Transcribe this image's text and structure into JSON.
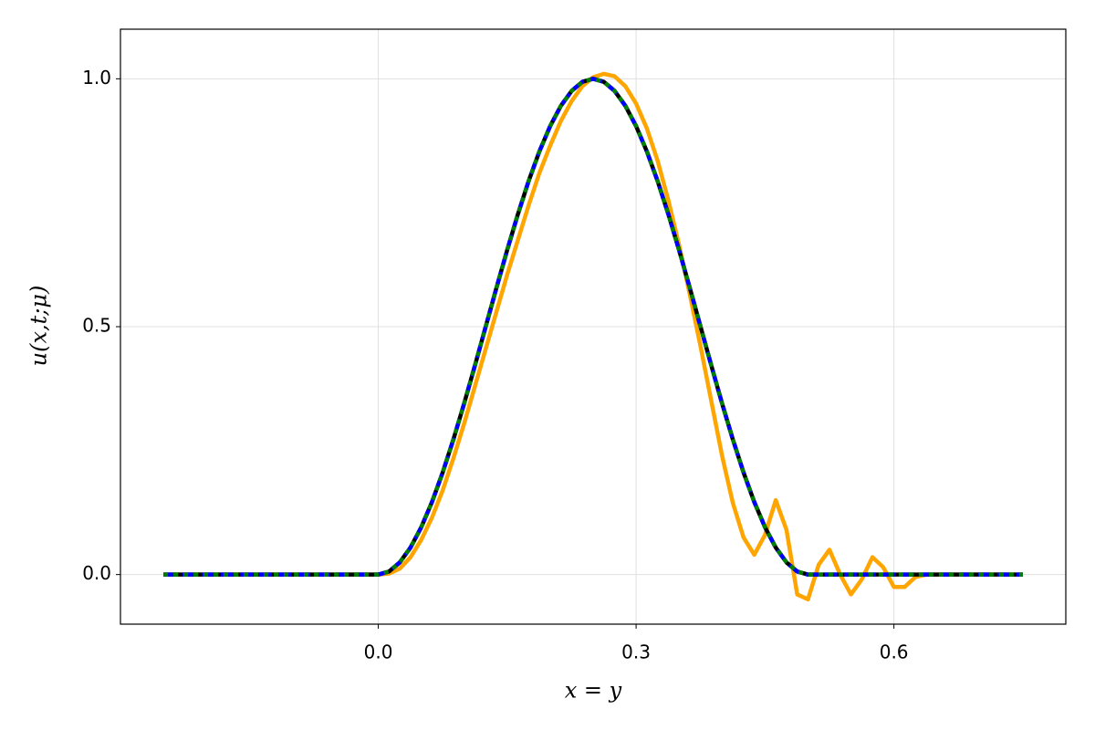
{
  "chart_data": {
    "type": "line",
    "xlabel": "x = y",
    "ylabel": "u(x,t;μ)",
    "x": [
      -0.25,
      -0.2375,
      -0.225,
      -0.2125,
      -0.2,
      -0.1875,
      -0.175,
      -0.1625,
      -0.15,
      -0.1375,
      -0.125,
      -0.1125,
      -0.1,
      -0.0875,
      -0.075,
      -0.0625,
      -0.05,
      -0.0375,
      -0.025,
      -0.0125,
      0,
      0.0125,
      0.025,
      0.0375,
      0.05,
      0.0625,
      0.075,
      0.0875,
      0.1,
      0.1125,
      0.125,
      0.1375,
      0.15,
      0.1625,
      0.175,
      0.1875,
      0.2,
      0.2125,
      0.225,
      0.2375,
      0.25,
      0.2625,
      0.275,
      0.2875,
      0.3,
      0.3125,
      0.325,
      0.3375,
      0.35,
      0.3625,
      0.375,
      0.3875,
      0.4,
      0.4125,
      0.425,
      0.4375,
      0.45,
      0.4625,
      0.475,
      0.4875,
      0.5,
      0.5125,
      0.525,
      0.5375,
      0.55,
      0.5625,
      0.575,
      0.5875,
      0.6,
      0.6125,
      0.625,
      0.6375,
      0.65,
      0.6625,
      0.675,
      0.6875,
      0.7,
      0.7125,
      0.725,
      0.7375,
      0.75
    ],
    "series": [
      {
        "color": "#ffa500",
        "dash": "solid",
        "values": [
          0,
          0,
          0,
          0,
          0,
          0,
          0,
          0,
          0,
          0,
          0,
          0,
          0,
          0,
          0,
          0,
          0,
          0,
          0,
          0,
          0,
          0.002,
          0.012,
          0.035,
          0.07,
          0.115,
          0.17,
          0.235,
          0.305,
          0.38,
          0.455,
          0.53,
          0.605,
          0.675,
          0.745,
          0.81,
          0.865,
          0.915,
          0.955,
          0.985,
          1.003,
          1.01,
          1.005,
          0.985,
          0.95,
          0.9,
          0.835,
          0.755,
          0.665,
          0.565,
          0.46,
          0.35,
          0.24,
          0.145,
          0.075,
          0.04,
          0.08,
          0.15,
          0.09,
          -0.04,
          -0.05,
          0.02,
          0.05,
          0,
          -0.04,
          -0.01,
          0.035,
          0.015,
          -0.025,
          -0.025,
          -0.005,
          0,
          0,
          0,
          0,
          0,
          0,
          0,
          0,
          0,
          0
        ]
      },
      {
        "color": "#000000",
        "dash": "solid",
        "values": [
          0,
          0,
          0,
          0,
          0,
          0,
          0,
          0,
          0,
          0,
          0,
          0,
          0,
          0,
          0,
          0,
          0,
          0,
          0,
          0,
          0,
          0.0062,
          0.0245,
          0.0545,
          0.0955,
          0.1464,
          0.2061,
          0.273,
          0.3455,
          0.4218,
          0.5,
          0.5782,
          0.6545,
          0.727,
          0.7939,
          0.8536,
          0.9045,
          0.9455,
          0.9755,
          0.9938,
          1,
          0.9938,
          0.9755,
          0.9455,
          0.9045,
          0.8536,
          0.7939,
          0.727,
          0.6545,
          0.5782,
          0.5,
          0.4218,
          0.3455,
          0.273,
          0.2061,
          0.1464,
          0.0955,
          0.0545,
          0.0245,
          0.0062,
          0,
          0,
          0,
          0,
          0,
          0,
          0,
          0,
          0,
          0,
          0,
          0,
          0,
          0,
          0,
          0,
          0,
          0,
          0,
          0,
          0
        ]
      },
      {
        "color": "#0000ff",
        "dash": "dash",
        "values": [
          0,
          0,
          0,
          0,
          0,
          0,
          0,
          0,
          0,
          0,
          0,
          0,
          0,
          0,
          0,
          0,
          0,
          0,
          0,
          0,
          0,
          0.0062,
          0.0245,
          0.0545,
          0.0955,
          0.1464,
          0.2061,
          0.273,
          0.3455,
          0.4218,
          0.5,
          0.5782,
          0.6545,
          0.727,
          0.7939,
          0.8536,
          0.9045,
          0.9455,
          0.9755,
          0.9938,
          1,
          0.9938,
          0.9755,
          0.9455,
          0.9045,
          0.8536,
          0.7939,
          0.727,
          0.6545,
          0.5782,
          0.5,
          0.4218,
          0.3455,
          0.273,
          0.2061,
          0.1464,
          0.0955,
          0.0545,
          0.0245,
          0.0062,
          0,
          0,
          0,
          0,
          0,
          0,
          0,
          0,
          0,
          0,
          0,
          0,
          0,
          0,
          0,
          0,
          0,
          0,
          0,
          0,
          0
        ]
      },
      {
        "color": "#008000",
        "dash": "dot",
        "values": [
          0,
          0,
          0,
          0,
          0,
          0,
          0,
          0,
          0,
          0,
          0,
          0,
          0,
          0,
          0,
          0,
          0,
          0,
          0,
          0,
          0,
          0.0062,
          0.0245,
          0.0545,
          0.0955,
          0.1464,
          0.2061,
          0.273,
          0.3455,
          0.4218,
          0.5,
          0.5782,
          0.6545,
          0.727,
          0.7939,
          0.8536,
          0.9045,
          0.9455,
          0.9755,
          0.9938,
          1,
          0.9938,
          0.9755,
          0.9455,
          0.9045,
          0.8536,
          0.7939,
          0.727,
          0.6545,
          0.5782,
          0.5,
          0.4218,
          0.3455,
          0.273,
          0.2061,
          0.1464,
          0.0955,
          0.0545,
          0.0245,
          0.0062,
          0,
          0,
          0,
          0,
          0,
          0,
          0,
          0,
          0,
          0,
          0,
          0,
          0,
          0,
          0,
          0,
          0,
          0,
          0,
          0,
          0
        ]
      }
    ],
    "xlim": [
      -0.3,
      0.8
    ],
    "ylim": [
      -0.1,
      1.1
    ],
    "xticks": [
      {
        "value": 0,
        "label": "0.0"
      },
      {
        "value": 0.3,
        "label": "0.3"
      },
      {
        "value": 0.6,
        "label": "0.6"
      }
    ],
    "yticks": [
      {
        "value": 0,
        "label": "0.0"
      },
      {
        "value": 0.5,
        "label": "0.5"
      },
      {
        "value": 1,
        "label": "1.0"
      }
    ],
    "grid": true
  }
}
